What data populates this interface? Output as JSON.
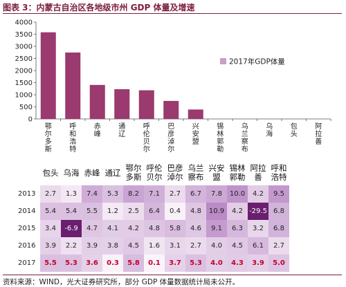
{
  "title": "图表 3：内蒙古自治区各地级市州 GDP 体量及增速",
  "chart_data": [
    {
      "type": "bar",
      "categories": [
        "鄂尔多斯",
        "呼和浩特",
        "赤峰",
        "通辽",
        "呼伦贝尔",
        "巴彦淖尔",
        "兴安盟",
        "锡林郭勒",
        "乌兰察布",
        "乌海",
        "包头",
        "阿拉善"
      ],
      "series": [
        {
          "name": "2017年GDP体量",
          "values": [
            3580,
            2745,
            1405,
            1230,
            1185,
            745,
            390,
            0,
            0,
            0,
            0,
            0
          ]
        }
      ],
      "ylim": [
        0,
        4000
      ],
      "yticks": [
        "0",
        "500",
        "1000",
        "1500",
        "2000",
        "2500",
        "3000",
        "3500",
        "4000"
      ],
      "legend_position": "right",
      "colors": {
        "bar": "#9b3a6e",
        "legend": "#c9a0c4"
      }
    },
    {
      "type": "heatmap",
      "columns": [
        "包头",
        "乌海",
        "赤峰",
        "通辽",
        "鄂尔多斯",
        "呼伦贝尔",
        "巴彦淖尔",
        "乌兰察布",
        "兴安盟",
        "锡林郭勒",
        "阿拉善",
        "呼和浩特"
      ],
      "header_labels": [
        "包头",
        "乌海",
        "赤峰",
        "通辽",
        "鄂尔\n多斯",
        "呼伦\n贝尔",
        "巴彦\n淖尔",
        "乌兰\n察布",
        "兴安\n盟",
        "锡林\n郭勒",
        "阿拉\n善",
        "呼和\n浩特"
      ],
      "rows": [
        {
          "year": "2013",
          "values": [
            "2.7",
            "1.3",
            "7.4",
            "5.3",
            "8.2",
            "7.1",
            "2.7",
            "6.7",
            "7.8",
            "10.0",
            "4.2",
            "9.5"
          ]
        },
        {
          "year": "2014",
          "values": [
            "5.4",
            "5.4",
            "5.5",
            "1.2",
            "2.5",
            "6.4",
            "0.4",
            "4.8",
            "10.9",
            "4.2",
            "-29.5",
            "6.8"
          ]
        },
        {
          "year": "2015",
          "values": [
            "3.4",
            "-6.9",
            "4.7",
            "4.1",
            "4.2",
            "4.8",
            "5.8",
            "4.6",
            "9.1",
            "6.3",
            "3.2",
            "6.8"
          ]
        },
        {
          "year": "2016",
          "values": [
            "3.9",
            "2.2",
            "3.9",
            "3.8",
            "4.5",
            "1.6",
            "3.1",
            "2.7",
            "4.0",
            "4.5",
            "6.1",
            "2.7"
          ]
        },
        {
          "year": "2017",
          "values": [
            "5.5",
            "5.3",
            "3.6",
            "0.3",
            "5.8",
            "0.1",
            "3.7",
            "5.3",
            "4.0",
            "4.3",
            "3.9",
            "5.0"
          ]
        }
      ],
      "colors": {
        "text": "#222222",
        "bold_text": "#c4002a",
        "shade_lo": "#fbf5fa",
        "shade_hi": "#b98ac6",
        "neg_deep": "#6a1e6e",
        "neg_text": "#ffffff"
      }
    }
  ],
  "source_note": "资料来源：WIND，光大证券研究所，部分 GDP 体量数据统计局未公开。"
}
